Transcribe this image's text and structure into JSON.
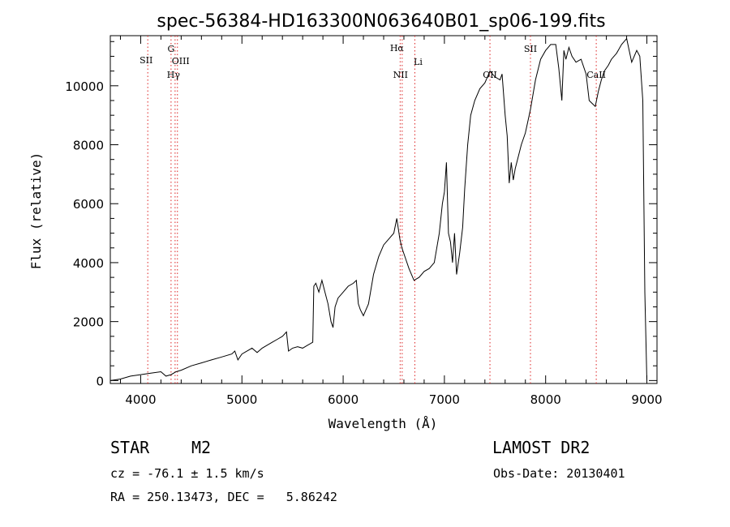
{
  "chart_data": {
    "type": "line",
    "title": "spec-56384-HD163300N063640B01_sp06-199.fits",
    "xlabel": "Wavelength (Å)",
    "ylabel": "Flux (relative)",
    "xlim": [
      3700,
      9100
    ],
    "ylim": [
      -100,
      11700
    ],
    "grid": false,
    "x_ticks": [
      4000,
      5000,
      6000,
      7000,
      8000,
      9000
    ],
    "x_tick_labels": [
      "4000",
      "5000",
      "6000",
      "7000",
      "8000",
      "9000"
    ],
    "y_ticks": [
      0,
      2000,
      4000,
      6000,
      8000,
      10000
    ],
    "y_tick_labels": [
      "0",
      "2000",
      "4000",
      "6000",
      "8000",
      "10000"
    ],
    "series": [
      {
        "color": "#000000",
        "x": [
          3700,
          3800,
          3900,
          4000,
          4100,
          4200,
          4250,
          4300,
          4350,
          4400,
          4500,
          4600,
          4700,
          4800,
          4900,
          4930,
          4960,
          5000,
          5100,
          5150,
          5200,
          5250,
          5300,
          5350,
          5400,
          5440,
          5460,
          5500,
          5550,
          5600,
          5650,
          5700,
          5710,
          5730,
          5760,
          5790,
          5820,
          5850,
          5880,
          5900,
          5920,
          5950,
          6000,
          6050,
          6100,
          6130,
          6150,
          6170,
          6200,
          6250,
          6300,
          6350,
          6400,
          6450,
          6500,
          6530,
          6560,
          6580,
          6600,
          6650,
          6700,
          6750,
          6800,
          6850,
          6900,
          6950,
          6980,
          7000,
          7020,
          7040,
          7060,
          7080,
          7100,
          7120,
          7150,
          7180,
          7200,
          7230,
          7260,
          7300,
          7350,
          7400,
          7450,
          7500,
          7550,
          7570,
          7600,
          7620,
          7640,
          7660,
          7680,
          7700,
          7730,
          7760,
          7800,
          7850,
          7900,
          7950,
          8000,
          8050,
          8100,
          8130,
          8160,
          8180,
          8200,
          8230,
          8260,
          8300,
          8350,
          8400,
          8430,
          8460,
          8490,
          8520,
          8550,
          8580,
          8620,
          8650,
          8700,
          8750,
          8800,
          8850,
          8900,
          8930,
          8960,
          8980,
          9000
        ],
        "y": [
          0,
          50,
          150,
          200,
          250,
          300,
          150,
          200,
          300,
          350,
          500,
          600,
          700,
          800,
          900,
          1000,
          700,
          900,
          1100,
          950,
          1100,
          1200,
          1300,
          1400,
          1500,
          1650,
          1000,
          1100,
          1150,
          1100,
          1200,
          1300,
          3200,
          3300,
          3000,
          3400,
          3000,
          2600,
          2000,
          1800,
          2500,
          2800,
          3000,
          3200,
          3300,
          3400,
          2600,
          2400,
          2200,
          2600,
          3600,
          4200,
          4600,
          4800,
          5000,
          5500,
          4800,
          4500,
          4300,
          3800,
          3400,
          3500,
          3700,
          3800,
          4000,
          5000,
          6000,
          6400,
          7400,
          5000,
          4700,
          4000,
          5000,
          3600,
          4300,
          5200,
          6500,
          8000,
          9000,
          9500,
          9900,
          10100,
          10500,
          10300,
          10200,
          10400,
          9000,
          8300,
          6700,
          7400,
          6800,
          7200,
          7600,
          8000,
          8400,
          9200,
          10200,
          10900,
          11200,
          11400,
          11400,
          10600,
          9500,
          11200,
          10900,
          11300,
          11000,
          10800,
          10900,
          10400,
          9500,
          9400,
          9300,
          9800,
          10200,
          10500,
          10700,
          10900,
          11100,
          11400,
          11600,
          10800,
          11200,
          11000,
          9500,
          3000,
          0
        ]
      }
    ],
    "lines": [
      {
        "x": 4070,
        "labels": [
          "SII"
        ],
        "color": "#dd2222"
      },
      {
        "x": 4300,
        "labels": [
          "G"
        ],
        "color": "#dd2222"
      },
      {
        "x": 4340,
        "labels": [
          "Hγ"
        ],
        "color": "#dd2222"
      },
      {
        "x": 4363,
        "labels": [
          "OIII"
        ],
        "color": "#dd2222"
      },
      {
        "x": 6563,
        "labels": [
          "Hα"
        ],
        "color": "#dd2222"
      },
      {
        "x": 6583,
        "labels": [
          "NII"
        ],
        "color": "#dd2222"
      },
      {
        "x": 6708,
        "labels": [
          "Li"
        ],
        "color": "#dd2222"
      },
      {
        "x": 7450,
        "labels": [
          "OII"
        ],
        "color": "#dd2222"
      },
      {
        "x": 7850,
        "labels": [
          "SII"
        ],
        "color": "#dd2222"
      },
      {
        "x": 8500,
        "labels": [
          "CaII"
        ],
        "color": "#dd2222"
      }
    ]
  },
  "info": {
    "object_class": "STAR",
    "subclass": "M2",
    "cz": "cz = -76.1 ± 1.5 km/s",
    "coords": "RA = 250.13473, DEC =   5.86242",
    "survey": "LAMOST DR2",
    "obs_date": "Obs-Date: 20130401"
  }
}
